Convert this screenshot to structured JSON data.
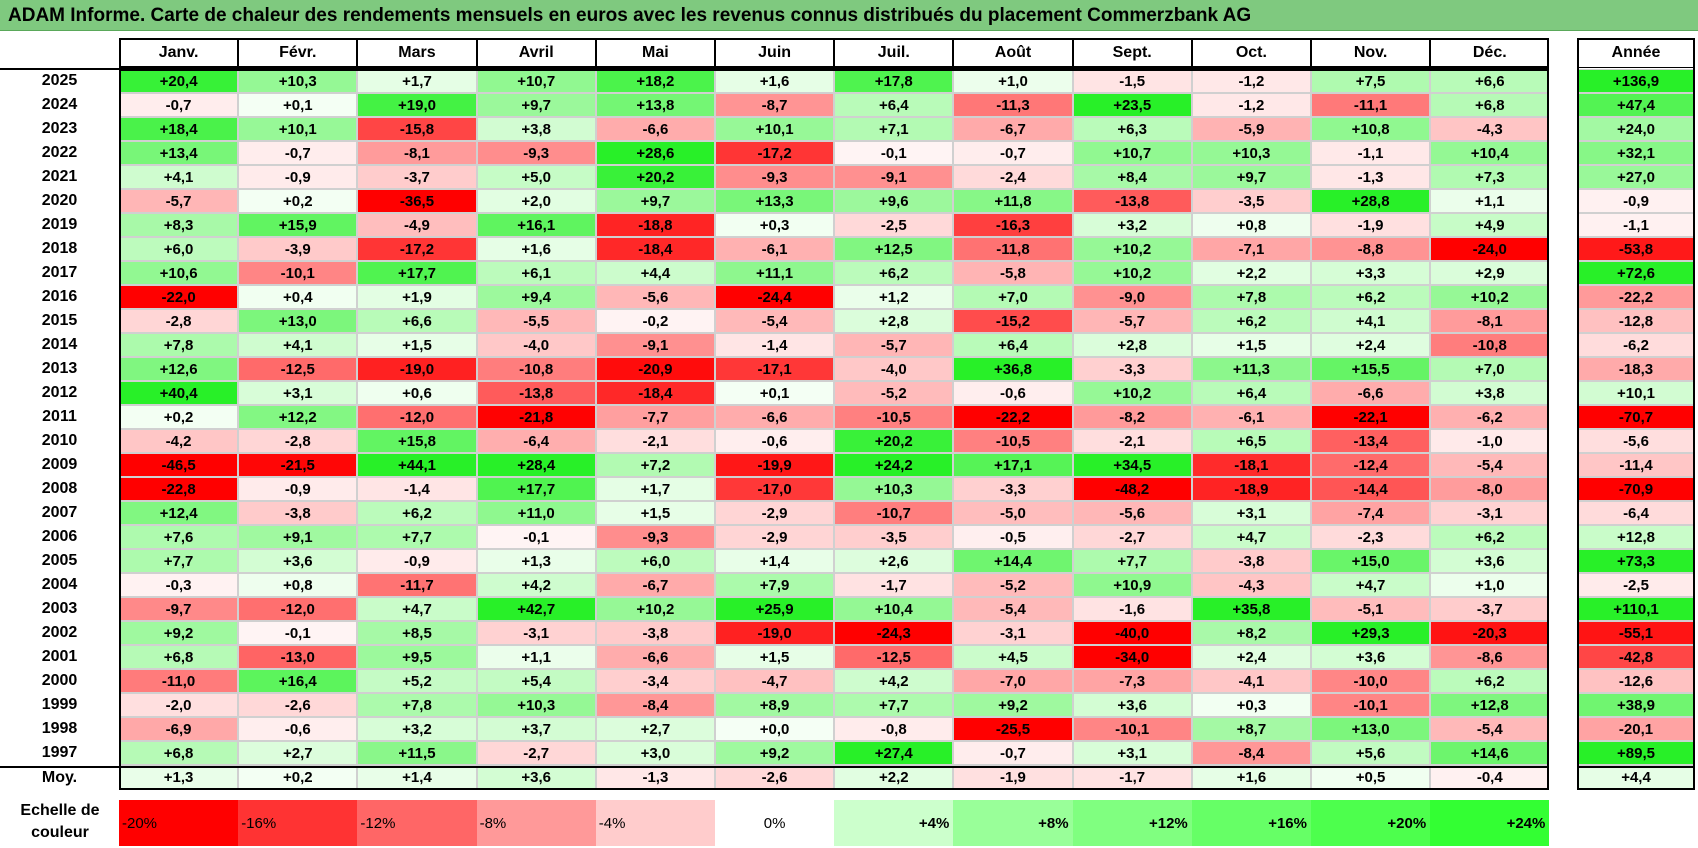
{
  "title": "ADAM Informe. Carte de chaleur des rendements mensuels en euros avec les revenus connus distribués du placement Commerzbank AG",
  "chart_data": {
    "type": "heatmap",
    "title": "ADAM Informe. Carte de chaleur des rendements mensuels en euros avec les revenus connus distribués du placement Commerzbank AG",
    "columns": [
      "Janv.",
      "Févr.",
      "Mars",
      "Avril",
      "Mai",
      "Juin",
      "Juil.",
      "Août",
      "Sept.",
      "Oct.",
      "Nov.",
      "Déc."
    ],
    "year_column_label": "Année",
    "rows": [
      {
        "year": "2025",
        "values": [
          "+20,4",
          "+10,3",
          "+1,7",
          "+10,7",
          "+18,2",
          "+1,6",
          "+17,8",
          "+1,0",
          "-1,5",
          "-1,2",
          "+7,5",
          "+6,6"
        ],
        "annual": "+136,9"
      },
      {
        "year": "2024",
        "values": [
          "-0,7",
          "+0,1",
          "+19,0",
          "+9,7",
          "+13,8",
          "-8,7",
          "+6,4",
          "-11,3",
          "+23,5",
          "-1,2",
          "-11,1",
          "+6,8"
        ],
        "annual": "+47,4"
      },
      {
        "year": "2023",
        "values": [
          "+18,4",
          "+10,1",
          "-15,8",
          "+3,8",
          "-6,6",
          "+10,1",
          "+7,1",
          "-6,7",
          "+6,3",
          "-5,9",
          "+10,8",
          "-4,3"
        ],
        "annual": "+24,0"
      },
      {
        "year": "2022",
        "values": [
          "+13,4",
          "-0,7",
          "-8,1",
          "-9,3",
          "+28,6",
          "-17,2",
          "-0,1",
          "-0,7",
          "+10,7",
          "+10,3",
          "-1,1",
          "+10,4"
        ],
        "annual": "+32,1"
      },
      {
        "year": "2021",
        "values": [
          "+4,1",
          "-0,9",
          "-3,7",
          "+5,0",
          "+20,2",
          "-9,3",
          "-9,1",
          "-2,4",
          "+8,4",
          "+9,7",
          "-1,3",
          "+7,3"
        ],
        "annual": "+27,0"
      },
      {
        "year": "2020",
        "values": [
          "-5,7",
          "+0,2",
          "-36,5",
          "+2,0",
          "+9,7",
          "+13,3",
          "+9,6",
          "+11,8",
          "-13,8",
          "-3,5",
          "+28,8",
          "+1,1"
        ],
        "annual": "-0,9"
      },
      {
        "year": "2019",
        "values": [
          "+8,3",
          "+15,9",
          "-4,9",
          "+16,1",
          "-18,8",
          "+0,3",
          "-2,5",
          "-16,3",
          "+3,2",
          "+0,8",
          "-1,9",
          "+4,9"
        ],
        "annual": "-1,1"
      },
      {
        "year": "2018",
        "values": [
          "+6,0",
          "-3,9",
          "-17,2",
          "+1,6",
          "-18,4",
          "-6,1",
          "+12,5",
          "-11,8",
          "+10,2",
          "-7,1",
          "-8,8",
          "-24,0"
        ],
        "annual": "-53,8"
      },
      {
        "year": "2017",
        "values": [
          "+10,6",
          "-10,1",
          "+17,7",
          "+6,1",
          "+4,4",
          "+11,1",
          "+6,2",
          "-5,8",
          "+10,2",
          "+2,2",
          "+3,3",
          "+2,9"
        ],
        "annual": "+72,6"
      },
      {
        "year": "2016",
        "values": [
          "-22,0",
          "+0,4",
          "+1,9",
          "+9,4",
          "-5,6",
          "-24,4",
          "+1,2",
          "+7,0",
          "-9,0",
          "+7,8",
          "+6,2",
          "+10,2"
        ],
        "annual": "-22,2"
      },
      {
        "year": "2015",
        "values": [
          "-2,8",
          "+13,0",
          "+6,6",
          "-5,5",
          "-0,2",
          "-5,4",
          "+2,8",
          "-15,2",
          "-5,7",
          "+6,2",
          "+4,1",
          "-8,1"
        ],
        "annual": "-12,8"
      },
      {
        "year": "2014",
        "values": [
          "+7,8",
          "+4,1",
          "+1,5",
          "-4,0",
          "-9,1",
          "-1,4",
          "-5,7",
          "+6,4",
          "+2,8",
          "+1,5",
          "+2,4",
          "-10,8"
        ],
        "annual": "-6,2"
      },
      {
        "year": "2013",
        "values": [
          "+12,6",
          "-12,5",
          "-19,0",
          "-10,8",
          "-20,9",
          "-17,1",
          "-4,0",
          "+36,8",
          "-3,3",
          "+11,3",
          "+15,5",
          "+7,0"
        ],
        "annual": "-18,3"
      },
      {
        "year": "2012",
        "values": [
          "+40,4",
          "+3,1",
          "+0,6",
          "-13,8",
          "-18,4",
          "+0,1",
          "-5,2",
          "-0,6",
          "+10,2",
          "+6,4",
          "-6,6",
          "+3,8"
        ],
        "annual": "+10,1"
      },
      {
        "year": "2011",
        "values": [
          "+0,2",
          "+12,2",
          "-12,0",
          "-21,8",
          "-7,7",
          "-6,6",
          "-10,5",
          "-22,2",
          "-8,2",
          "-6,1",
          "-22,1",
          "-6,2"
        ],
        "annual": "-70,7"
      },
      {
        "year": "2010",
        "values": [
          "-4,2",
          "-2,8",
          "+15,8",
          "-6,4",
          "-2,1",
          "-0,6",
          "+20,2",
          "-10,5",
          "-2,1",
          "+6,5",
          "-13,4",
          "-1,0"
        ],
        "annual": "-5,6"
      },
      {
        "year": "2009",
        "values": [
          "-46,5",
          "-21,5",
          "+44,1",
          "+28,4",
          "+7,2",
          "-19,9",
          "+24,2",
          "+17,1",
          "+34,5",
          "-18,1",
          "-12,4",
          "-5,4"
        ],
        "annual": "-11,4"
      },
      {
        "year": "2008",
        "values": [
          "-22,8",
          "-0,9",
          "-1,4",
          "+17,7",
          "+1,7",
          "-17,0",
          "+10,3",
          "-3,3",
          "-48,2",
          "-18,9",
          "-14,4",
          "-8,0"
        ],
        "annual": "-70,9"
      },
      {
        "year": "2007",
        "values": [
          "+12,4",
          "-3,8",
          "+6,2",
          "+11,0",
          "+1,5",
          "-2,9",
          "-10,7",
          "-5,0",
          "-5,6",
          "+3,1",
          "-7,4",
          "-3,1"
        ],
        "annual": "-6,4"
      },
      {
        "year": "2006",
        "values": [
          "+7,6",
          "+9,1",
          "+7,7",
          "-0,1",
          "-9,3",
          "-2,9",
          "-3,5",
          "-0,5",
          "-2,7",
          "+4,7",
          "-2,3",
          "+6,2"
        ],
        "annual": "+12,8"
      },
      {
        "year": "2005",
        "values": [
          "+7,7",
          "+3,6",
          "-0,9",
          "+1,3",
          "+6,0",
          "+1,4",
          "+2,6",
          "+14,4",
          "+7,7",
          "-3,8",
          "+15,0",
          "+3,6"
        ],
        "annual": "+73,3"
      },
      {
        "year": "2004",
        "values": [
          "-0,3",
          "+0,8",
          "-11,7",
          "+4,2",
          "-6,7",
          "+7,9",
          "-1,7",
          "-5,2",
          "+10,9",
          "-4,3",
          "+4,7",
          "+1,0"
        ],
        "annual": "-2,5"
      },
      {
        "year": "2003",
        "values": [
          "-9,7",
          "-12,0",
          "+4,7",
          "+42,7",
          "+10,2",
          "+25,9",
          "+10,4",
          "-5,4",
          "-1,6",
          "+35,8",
          "-5,1",
          "-3,7"
        ],
        "annual": "+110,1"
      },
      {
        "year": "2002",
        "values": [
          "+9,2",
          "-0,1",
          "+8,5",
          "-3,1",
          "-3,8",
          "-19,0",
          "-24,3",
          "-3,1",
          "-40,0",
          "+8,2",
          "+29,3",
          "-20,3"
        ],
        "annual": "-55,1"
      },
      {
        "year": "2001",
        "values": [
          "+6,8",
          "-13,0",
          "+9,5",
          "+1,1",
          "-6,6",
          "+1,5",
          "-12,5",
          "+4,5",
          "-34,0",
          "+2,4",
          "+3,6",
          "-8,6"
        ],
        "annual": "-42,8"
      },
      {
        "year": "2000",
        "values": [
          "-11,0",
          "+16,4",
          "+5,2",
          "+5,4",
          "-3,4",
          "-4,7",
          "+4,2",
          "-7,0",
          "-7,3",
          "-4,1",
          "-10,0",
          "+6,2"
        ],
        "annual": "-12,6"
      },
      {
        "year": "1999",
        "values": [
          "-2,0",
          "-2,6",
          "+7,8",
          "+10,3",
          "-8,4",
          "+8,9",
          "+7,7",
          "+9,2",
          "+3,6",
          "+0,3",
          "-10,1",
          "+12,8"
        ],
        "annual": "+38,9"
      },
      {
        "year": "1998",
        "values": [
          "-6,9",
          "-0,6",
          "+3,2",
          "+3,7",
          "+2,7",
          "+0,0",
          "-0,8",
          "-25,5",
          "-10,1",
          "+8,7",
          "+13,0",
          "-5,4"
        ],
        "annual": "-20,1"
      },
      {
        "year": "1997",
        "values": [
          "+6,8",
          "+2,7",
          "+11,5",
          "-2,7",
          "+3,0",
          "+9,2",
          "+27,4",
          "-0,7",
          "+3,1",
          "-8,4",
          "+5,6",
          "+14,6"
        ],
        "annual": "+89,5"
      }
    ],
    "average": {
      "label": "Moy.",
      "values": [
        "+1,3",
        "+0,2",
        "+1,4",
        "+3,6",
        "-1,3",
        "-2,6",
        "+2,2",
        "-1,9",
        "-1,7",
        "+1,6",
        "+0,5",
        "-0,4"
      ],
      "annual": "+4,4"
    },
    "scale": {
      "label": "Echelle de couleur",
      "steps": [
        "-20%",
        "-16%",
        "-12%",
        "-8%",
        "-4%",
        "0%",
        "+4%",
        "+8%",
        "+12%",
        "+16%",
        "+20%",
        "+24%"
      ],
      "colors": [
        "#ff0000",
        "#ff3333",
        "#ff6666",
        "#ff9999",
        "#ffcccc",
        "#ffffff",
        "#ccffcc",
        "#99ff99",
        "#80ff80",
        "#66ff66",
        "#4dff4d",
        "#33ff33"
      ]
    },
    "colors": {
      "negative_max": "#ff0000",
      "neutral": "#ffffff",
      "positive_max": "#33ff33"
    }
  }
}
